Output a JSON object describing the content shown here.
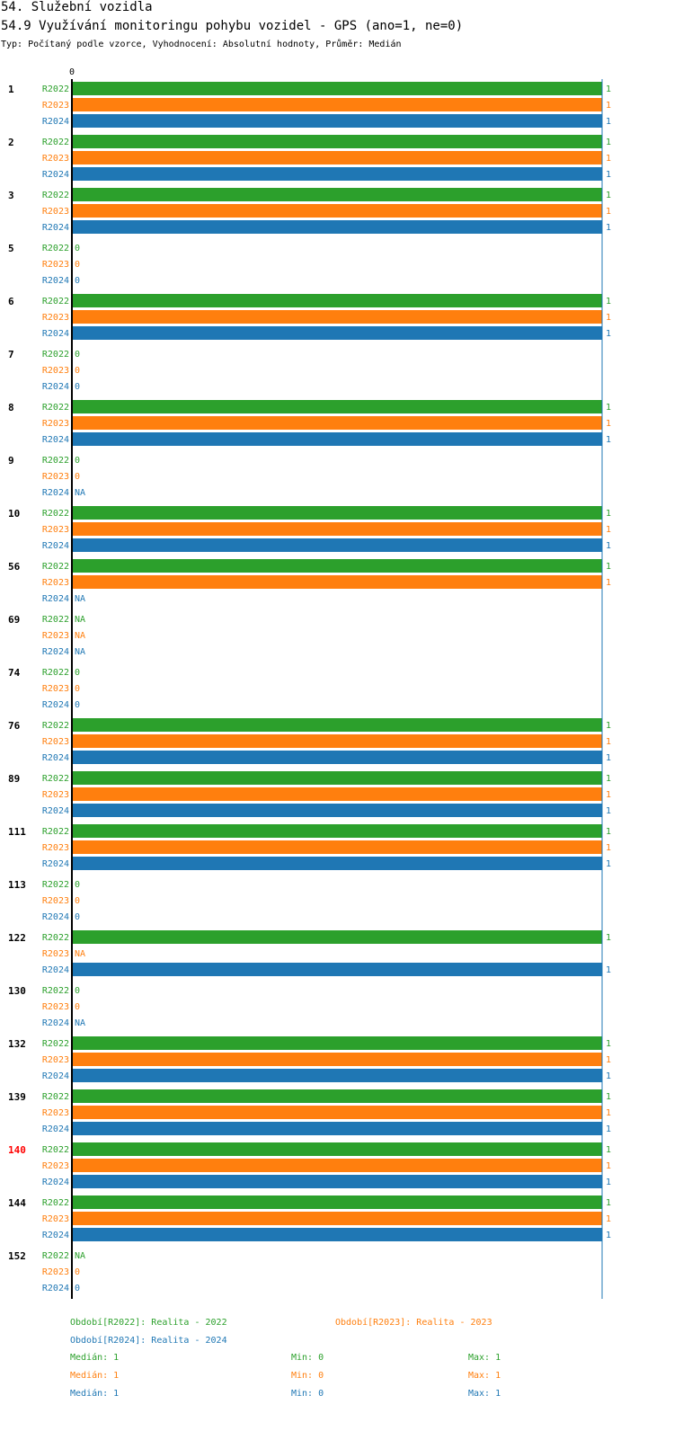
{
  "header": {
    "title": "54. Služební vozidla",
    "subtitle": "54.9 Využívání monitoringu pohybu vozidel - GPS (ano=1, ne=0)",
    "info": "Typ: Počítaný podle vzorce, Vyhodnocení: Absolutní hodnoty, Průměr: Medián"
  },
  "chart_data": {
    "type": "bar",
    "orientation": "horizontal",
    "x_tick_labels": [
      "0"
    ],
    "xlim": [
      0,
      1
    ],
    "series": [
      {
        "name": "R2022",
        "color": "#2ca02c"
      },
      {
        "name": "R2023",
        "color": "#ff7f0e"
      },
      {
        "name": "R2024",
        "color": "#1f77b4"
      }
    ],
    "categories": [
      {
        "label": "1",
        "highlight": false,
        "values": [
          1,
          1,
          1
        ]
      },
      {
        "label": "2",
        "highlight": false,
        "values": [
          1,
          1,
          1
        ]
      },
      {
        "label": "3",
        "highlight": false,
        "values": [
          1,
          1,
          1
        ]
      },
      {
        "label": "5",
        "highlight": false,
        "values": [
          0,
          0,
          0
        ]
      },
      {
        "label": "6",
        "highlight": false,
        "values": [
          1,
          1,
          1
        ]
      },
      {
        "label": "7",
        "highlight": false,
        "values": [
          0,
          0,
          0
        ]
      },
      {
        "label": "8",
        "highlight": false,
        "values": [
          1,
          1,
          1
        ]
      },
      {
        "label": "9",
        "highlight": false,
        "values": [
          0,
          0,
          "NA"
        ]
      },
      {
        "label": "10",
        "highlight": false,
        "values": [
          1,
          1,
          1
        ]
      },
      {
        "label": "56",
        "highlight": false,
        "values": [
          1,
          1,
          "NA"
        ]
      },
      {
        "label": "69",
        "highlight": false,
        "values": [
          "NA",
          "NA",
          "NA"
        ]
      },
      {
        "label": "74",
        "highlight": false,
        "values": [
          0,
          0,
          0
        ]
      },
      {
        "label": "76",
        "highlight": false,
        "values": [
          1,
          1,
          1
        ]
      },
      {
        "label": "89",
        "highlight": false,
        "values": [
          1,
          1,
          1
        ]
      },
      {
        "label": "111",
        "highlight": false,
        "values": [
          1,
          1,
          1
        ]
      },
      {
        "label": "113",
        "highlight": false,
        "values": [
          0,
          0,
          0
        ]
      },
      {
        "label": "122",
        "highlight": false,
        "values": [
          1,
          "NA",
          1
        ]
      },
      {
        "label": "130",
        "highlight": false,
        "values": [
          0,
          0,
          "NA"
        ]
      },
      {
        "label": "132",
        "highlight": false,
        "values": [
          1,
          1,
          1
        ]
      },
      {
        "label": "139",
        "highlight": false,
        "values": [
          1,
          1,
          1
        ]
      },
      {
        "label": "140",
        "highlight": true,
        "values": [
          1,
          1,
          1
        ]
      },
      {
        "label": "144",
        "highlight": false,
        "values": [
          1,
          1,
          1
        ]
      },
      {
        "label": "152",
        "highlight": false,
        "values": [
          "NA",
          0,
          0
        ]
      }
    ]
  },
  "legend": {
    "periods": [
      {
        "text": "Období[R2022]: Realita - 2022",
        "color": "#2ca02c"
      },
      {
        "text": "Období[R2023]: Realita - 2023",
        "color": "#ff7f0e"
      },
      {
        "text": "Období[R2024]: Realita - 2024",
        "color": "#1f77b4"
      }
    ],
    "stats": [
      {
        "median": "Medián: 1",
        "min": "Min: 0",
        "max": "Max: 1",
        "color": "#2ca02c"
      },
      {
        "median": "Medián: 1",
        "min": "Min: 0",
        "max": "Max: 1",
        "color": "#ff7f0e"
      },
      {
        "median": "Medián: 1",
        "min": "Min: 0",
        "max": "Max: 1",
        "color": "#1f77b4"
      }
    ]
  }
}
